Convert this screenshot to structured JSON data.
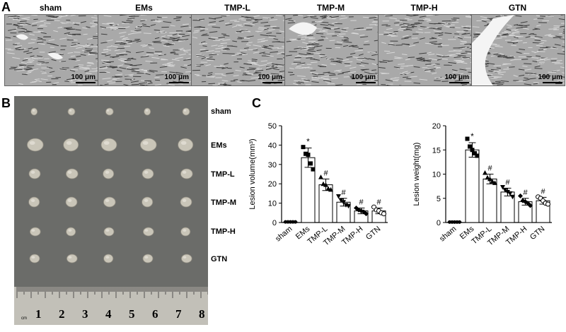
{
  "panel_labels": {
    "a": "A",
    "b": "B",
    "c": "C"
  },
  "panel_a": {
    "groups": [
      "sham",
      "EMs",
      "TMP-L",
      "TMP-M",
      "TMP-H",
      "GTN"
    ],
    "scale_bar": "100 μm"
  },
  "panel_b": {
    "groups": [
      "sham",
      "EMs",
      "TMP-L",
      "TMP-M",
      "TMP-H",
      "GTN"
    ],
    "ruler_numbers": [
      "1",
      "2",
      "3",
      "4",
      "5",
      "6",
      "7",
      "8"
    ],
    "ruler_unit": "cm"
  },
  "chart_data": [
    {
      "type": "bar",
      "categories": [
        "sham",
        "EMs",
        "TMP-L",
        "TMP-M",
        "TMP-H",
        "GTN"
      ],
      "values": [
        0.3,
        33.5,
        19.5,
        10.5,
        6.0,
        6.0
      ],
      "errors": [
        0.1,
        5.0,
        3.0,
        2.0,
        1.5,
        1.5
      ],
      "points": [
        [
          0.3,
          0.3,
          0.3,
          0.3,
          0.3
        ],
        [
          39.0,
          35.5,
          35.0,
          30.5,
          27.5
        ],
        [
          23.5,
          20.0,
          19.5,
          17.5,
          17.0
        ],
        [
          13.5,
          11.5,
          10.5,
          9.0,
          8.5
        ],
        [
          7.5,
          6.5,
          6.0,
          5.5,
          4.5
        ],
        [
          8.0,
          6.5,
          6.0,
          5.0,
          4.5
        ]
      ],
      "markers": [
        "circle",
        "square",
        "triangle",
        "triangle-down",
        "diamond",
        "circle-open"
      ],
      "annotations": [
        "",
        "*",
        "#",
        "#",
        "#",
        "#"
      ],
      "xlabel": "",
      "ylabel": "Lesion volume(mm³)",
      "ylim": [
        0,
        50
      ],
      "yticks": [
        "0",
        "10",
        "20",
        "30",
        "40",
        "50"
      ]
    },
    {
      "type": "bar",
      "categories": [
        "sham",
        "EMs",
        "TMP-L",
        "TMP-M",
        "TMP-H",
        "GTN"
      ],
      "values": [
        0.1,
        15.0,
        9.0,
        6.3,
        4.3,
        4.5
      ],
      "errors": [
        0.05,
        1.5,
        1.0,
        0.8,
        0.7,
        0.7
      ],
      "points": [
        [
          0.1,
          0.1,
          0.1,
          0.1,
          0.1
        ],
        [
          17.3,
          15.7,
          15.0,
          14.3,
          13.8
        ],
        [
          10.3,
          9.3,
          9.0,
          8.5,
          8.2
        ],
        [
          7.3,
          6.7,
          6.3,
          6.0,
          5.3
        ],
        [
          5.5,
          4.5,
          4.3,
          4.0,
          3.5
        ],
        [
          5.3,
          5.0,
          4.5,
          4.0,
          3.8
        ]
      ],
      "markers": [
        "circle",
        "square",
        "triangle",
        "triangle-down",
        "diamond",
        "circle-open"
      ],
      "annotations": [
        "",
        "*",
        "#",
        "#",
        "#",
        "#"
      ],
      "xlabel": "",
      "ylabel": "Lesion weight(mg)",
      "ylim": [
        0,
        20
      ],
      "yticks": [
        "0",
        "5",
        "10",
        "15",
        "20"
      ]
    }
  ]
}
